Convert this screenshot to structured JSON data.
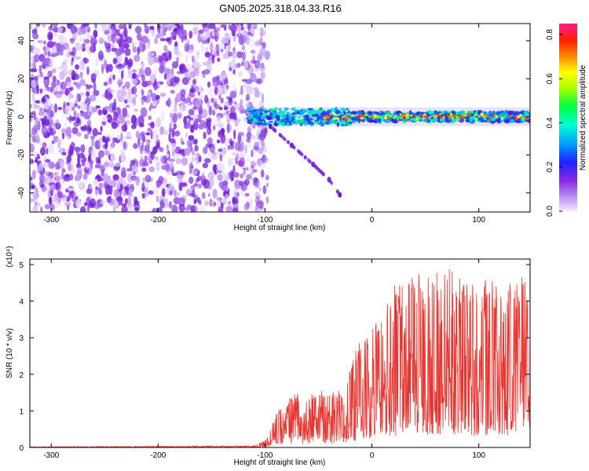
{
  "title": "GN05.2025.318.04.33.R16",
  "chart_data": [
    {
      "type": "heatmap",
      "title": "GN05.2025.318.04.33.R16",
      "xlabel": "Height of straight line (km)",
      "ylabel": "Frequency (Hz)",
      "xlim": [
        -320,
        148
      ],
      "ylim": [
        -50,
        49
      ],
      "x_ticks": [
        -300,
        -200,
        -100,
        0,
        100
      ],
      "y_ticks": [
        -40,
        -20,
        0,
        20,
        40
      ],
      "colorbar": {
        "label": "Normalized spectral amplitude",
        "range": [
          0.0,
          0.85
        ],
        "ticks": [
          0.0,
          0.2,
          0.4,
          0.6,
          0.8
        ],
        "colors": [
          "#f0e6ff",
          "#8a2be2",
          "#0000ff",
          "#00bfff",
          "#00ffcc",
          "#00ff00",
          "#ffff00",
          "#ff8000",
          "#ff0000",
          "#ff1493"
        ]
      },
      "features": {
        "noise_region_x": [
          -320,
          -105
        ],
        "signal_center_hz": 0,
        "signal_start_x": -115,
        "secondary_arc": {
          "x": [
            -95,
            -75,
            -55,
            -40,
            -30
          ],
          "y": [
            -5,
            -15,
            -25,
            -33,
            -41
          ]
        }
      }
    },
    {
      "type": "line",
      "xlabel": "Height of straight line (km)",
      "ylabel": "SNR (10 * v/v)",
      "y_multiplier": "(x10⁴)",
      "xlim": [
        -320,
        148
      ],
      "ylim": [
        0,
        5.15
      ],
      "x_ticks": [
        -300,
        -200,
        -100,
        0,
        100
      ],
      "y_ticks": [
        0,
        1,
        2,
        3,
        4,
        5
      ],
      "line_color": "#e8332e",
      "envelope": {
        "x": [
          -320,
          -110,
          -100,
          -90,
          -80,
          -70,
          -60,
          -50,
          -40,
          -30,
          -20,
          -10,
          0,
          10,
          20,
          30,
          40,
          50,
          60,
          70,
          80,
          90,
          100,
          110,
          120,
          130,
          140,
          148
        ],
        "y": [
          0.02,
          0.05,
          0.2,
          0.9,
          1.3,
          1.5,
          1.4,
          1.7,
          1.5,
          1.6,
          2.4,
          3.0,
          3.4,
          3.9,
          4.4,
          4.6,
          5.0,
          4.6,
          4.8,
          5.1,
          4.6,
          4.7,
          4.3,
          4.8,
          4.2,
          4.6,
          5.1,
          4.2
        ]
      }
    }
  ]
}
